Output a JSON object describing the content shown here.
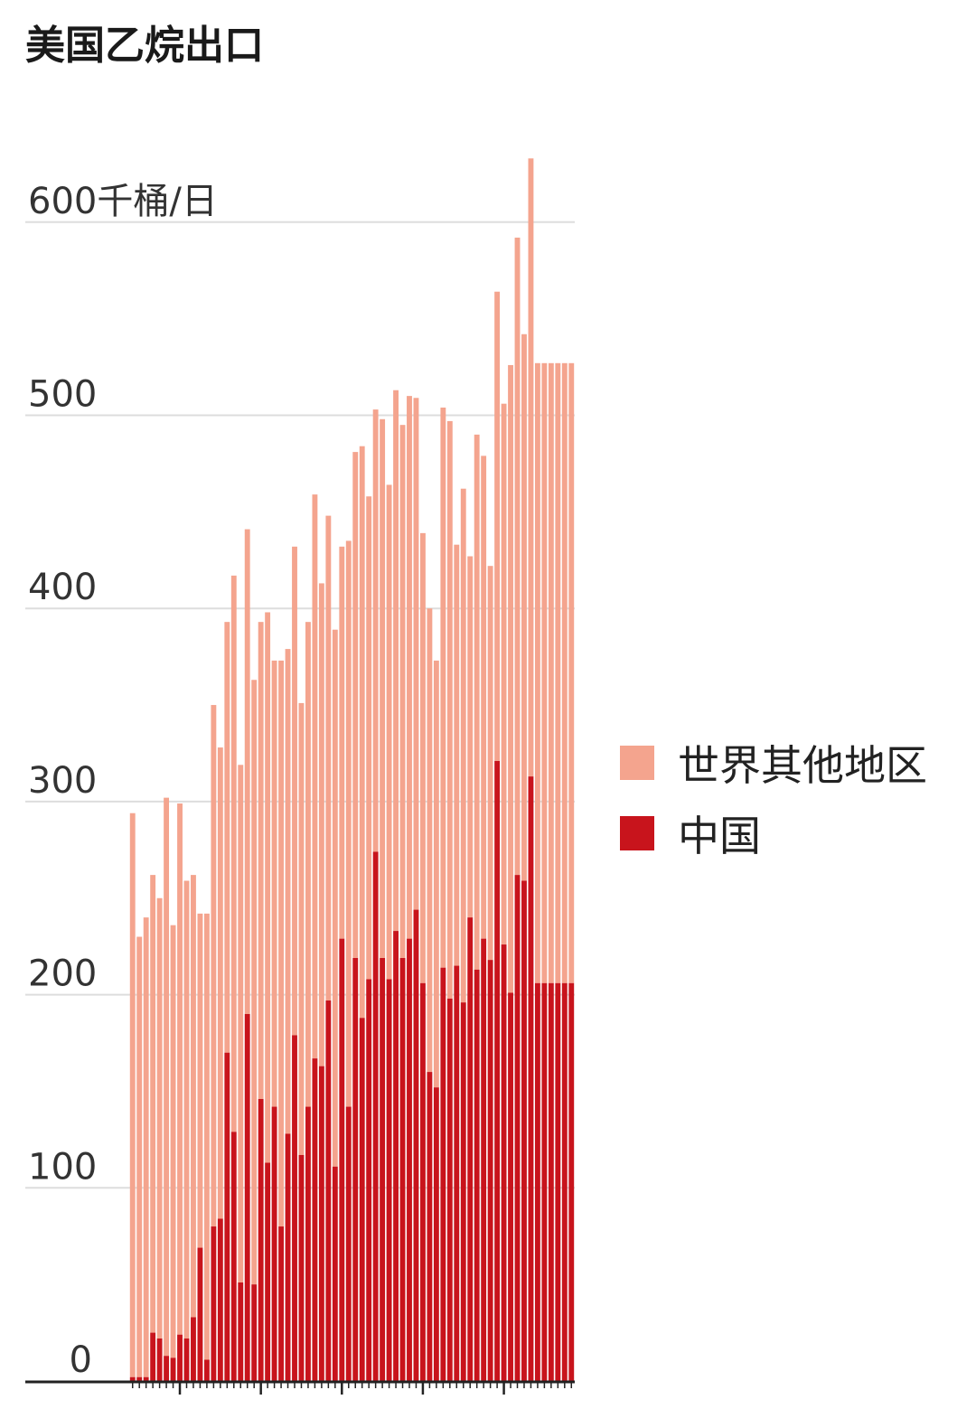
{
  "colors": {
    "rest_of_world": "#f4a48e",
    "china": "#c8141c",
    "grid": "#dddddd",
    "axis": "#222222"
  },
  "chart_data": {
    "type": "bar",
    "stacked": true,
    "title": "美国乙烷出口",
    "ylabel": "",
    "xlabel": "",
    "y_unit_label": "600千桶/日",
    "ylim": [
      0,
      630
    ],
    "yticks": [
      0,
      100,
      200,
      300,
      400,
      500,
      600
    ],
    "ytick_labels": [
      "0",
      "100",
      "200",
      "300",
      "400",
      "500",
      "600千桶/日"
    ],
    "grid": true,
    "legend_position": "right",
    "x_tick_count": 66,
    "x_major_every": 12,
    "x_major_first": 7,
    "series": [
      {
        "name": "中国",
        "color_key": "china",
        "values": [
          2,
          2,
          2,
          25,
          22,
          13,
          12,
          24,
          22,
          33,
          69,
          11,
          80,
          84,
          170,
          129,
          51,
          190,
          50,
          146,
          113,
          142,
          80,
          128,
          179,
          117,
          142,
          167,
          163,
          197,
          111,
          229,
          142,
          219,
          188,
          208,
          274,
          219,
          208,
          233,
          219,
          229,
          244,
          206,
          160,
          152,
          214,
          198,
          215,
          196,
          240,
          213,
          229,
          218,
          321,
          226,
          201,
          262,
          259,
          313,
          206,
          206,
          206,
          206,
          206,
          206
        ]
      },
      {
        "name": "世界其他地区",
        "color_key": "rest_of_world",
        "values": [
          292,
          228,
          238,
          237,
          228,
          289,
          224,
          275,
          237,
          229,
          173,
          231,
          270,
          244,
          223,
          288,
          268,
          251,
          313,
          247,
          285,
          231,
          293,
          251,
          253,
          234,
          251,
          292,
          250,
          251,
          278,
          203,
          293,
          262,
          296,
          250,
          229,
          279,
          256,
          280,
          276,
          281,
          265,
          233,
          240,
          221,
          290,
          299,
          218,
          266,
          187,
          277,
          250,
          204,
          243,
          280,
          325,
          330,
          283,
          320,
          321,
          321,
          321,
          321,
          321,
          321
        ]
      }
    ]
  },
  "legend": {
    "items": [
      {
        "label": "世界其他地区",
        "color_key": "rest_of_world"
      },
      {
        "label": "中国",
        "color_key": "china"
      }
    ]
  }
}
